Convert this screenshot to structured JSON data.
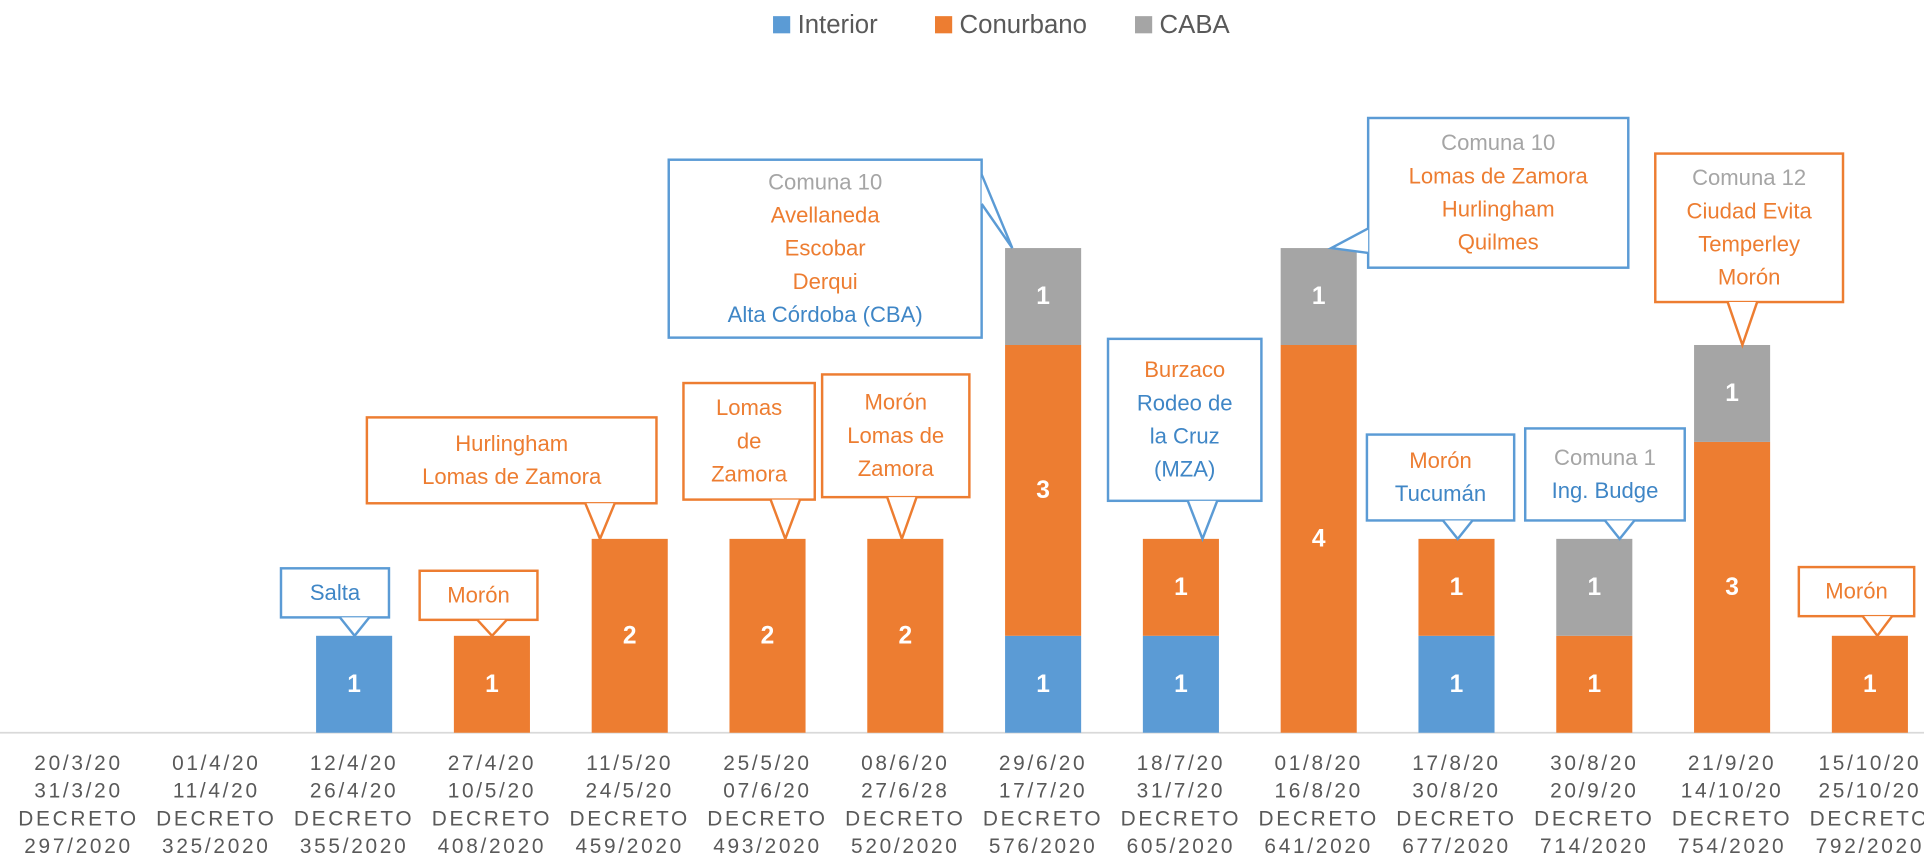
{
  "chart_data": {
    "type": "stacked_bar",
    "categories": [
      [
        "20/3/20",
        "31/3/20",
        "DECRETO",
        "297/2020"
      ],
      [
        "01/4/20",
        "11/4/20",
        "DECRETO",
        "325/2020"
      ],
      [
        "12/4/20",
        "26/4/20",
        "DECRETO",
        "355/2020"
      ],
      [
        "27/4/20",
        "10/5/20",
        "DECRETO",
        "408/2020"
      ],
      [
        "11/5/20",
        "24/5/20",
        "DECRETO",
        "459/2020"
      ],
      [
        "25/5/20",
        "07/6/20",
        "DECRETO",
        "493/2020"
      ],
      [
        "08/6/20",
        "27/6/28",
        "DECRETO",
        "520/2020"
      ],
      [
        "29/6/20",
        "17/7/20",
        "DECRETO",
        "576/2020"
      ],
      [
        "18/7/20",
        "31/7/20",
        "DECRETO",
        "605/2020"
      ],
      [
        "01/8/20",
        "16/8/20",
        "DECRETO",
        "641/2020"
      ],
      [
        "17/8/20",
        "30/8/20",
        "DECRETO",
        "677/2020"
      ],
      [
        "30/8/20",
        "20/9/20",
        "DECRETO",
        "714/2020"
      ],
      [
        "21/9/20",
        "14/10/20",
        "DECRETO",
        "754/2020"
      ],
      [
        "15/10/20",
        "25/10/20",
        "DECRETO",
        "792/2020"
      ]
    ],
    "series": [
      {
        "name": "Interior",
        "color": "#5b9bd5",
        "values": [
          0,
          0,
          1,
          0,
          0,
          0,
          0,
          1,
          1,
          0,
          1,
          0,
          0,
          0
        ]
      },
      {
        "name": "Conurbano",
        "color": "#ed7d31",
        "values": [
          0,
          0,
          0,
          1,
          2,
          2,
          2,
          3,
          1,
          4,
          1,
          1,
          3,
          1
        ]
      },
      {
        "name": "CABA",
        "color": "#a5a5a5",
        "values": [
          0,
          0,
          0,
          0,
          0,
          0,
          0,
          1,
          0,
          1,
          0,
          1,
          1,
          0
        ]
      }
    ],
    "legend": "top",
    "annotations": [
      {
        "category": 2,
        "border": "#5b9bd5",
        "lines": [
          {
            "text": "Salta",
            "color": "#3f86c6"
          }
        ]
      },
      {
        "category": 3,
        "border": "#ed7d31",
        "lines": [
          {
            "text": "Morón",
            "color": "#ed7d31"
          }
        ]
      },
      {
        "category": 4,
        "border": "#ed7d31",
        "lines": [
          {
            "text": "Hurlingham",
            "color": "#ed7d31"
          },
          {
            "text": "Lomas de Zamora",
            "color": "#ed7d31"
          }
        ]
      },
      {
        "category": 5,
        "border": "#ed7d31",
        "lines": [
          {
            "text": "Lomas",
            "color": "#ed7d31"
          },
          {
            "text": "de",
            "color": "#ed7d31"
          },
          {
            "text": "Zamora",
            "color": "#ed7d31"
          }
        ]
      },
      {
        "category": 6,
        "border": "#ed7d31",
        "lines": [
          {
            "text": "Morón",
            "color": "#ed7d31"
          },
          {
            "text": "Lomas de",
            "color": "#ed7d31"
          },
          {
            "text": "Zamora",
            "color": "#ed7d31"
          }
        ]
      },
      {
        "category": 7,
        "border": "#5b9bd5",
        "lines": [
          {
            "text": "Comuna 10",
            "color": "#a5a5a5"
          },
          {
            "text": "Avellaneda",
            "color": "#ed7d31"
          },
          {
            "text": "Escobar",
            "color": "#ed7d31"
          },
          {
            "text": "Derqui",
            "color": "#ed7d31"
          },
          {
            "text": "Alta Córdoba (CBA)",
            "color": "#3f86c6"
          }
        ]
      },
      {
        "category": 8,
        "border": "#5b9bd5",
        "lines": [
          {
            "text": "Burzaco",
            "color": "#ed7d31"
          },
          {
            "text": "Rodeo de",
            "color": "#3f86c6"
          },
          {
            "text": "la Cruz",
            "color": "#3f86c6"
          },
          {
            "text": "(MZA)",
            "color": "#3f86c6"
          }
        ]
      },
      {
        "category": 9,
        "border": "#5b9bd5",
        "lines": [
          {
            "text": "Comuna 10",
            "color": "#a5a5a5"
          },
          {
            "text": "Lomas de Zamora",
            "color": "#ed7d31"
          },
          {
            "text": "Hurlingham",
            "color": "#ed7d31"
          },
          {
            "text": "Quilmes",
            "color": "#ed7d31"
          }
        ]
      },
      {
        "category": 10,
        "border": "#5b9bd5",
        "lines": [
          {
            "text": "Morón",
            "color": "#ed7d31"
          },
          {
            "text": "Tucumán",
            "color": "#3f86c6"
          }
        ]
      },
      {
        "category": 11,
        "border": "#5b9bd5",
        "lines": [
          {
            "text": "Comuna 1",
            "color": "#a5a5a5"
          },
          {
            "text": "Ing. Budge",
            "color": "#3f86c6"
          }
        ]
      },
      {
        "category": 12,
        "border": "#ed7d31",
        "lines": [
          {
            "text": "Comuna 12",
            "color": "#a5a5a5"
          },
          {
            "text": "Ciudad Evita",
            "color": "#ed7d31"
          },
          {
            "text": "Temperley",
            "color": "#ed7d31"
          },
          {
            "text": "Morón",
            "color": "#ed7d31"
          }
        ]
      },
      {
        "category": 13,
        "border": "#ed7d31",
        "lines": [
          {
            "text": "Morón",
            "color": "#ed7d31"
          }
        ]
      }
    ]
  }
}
